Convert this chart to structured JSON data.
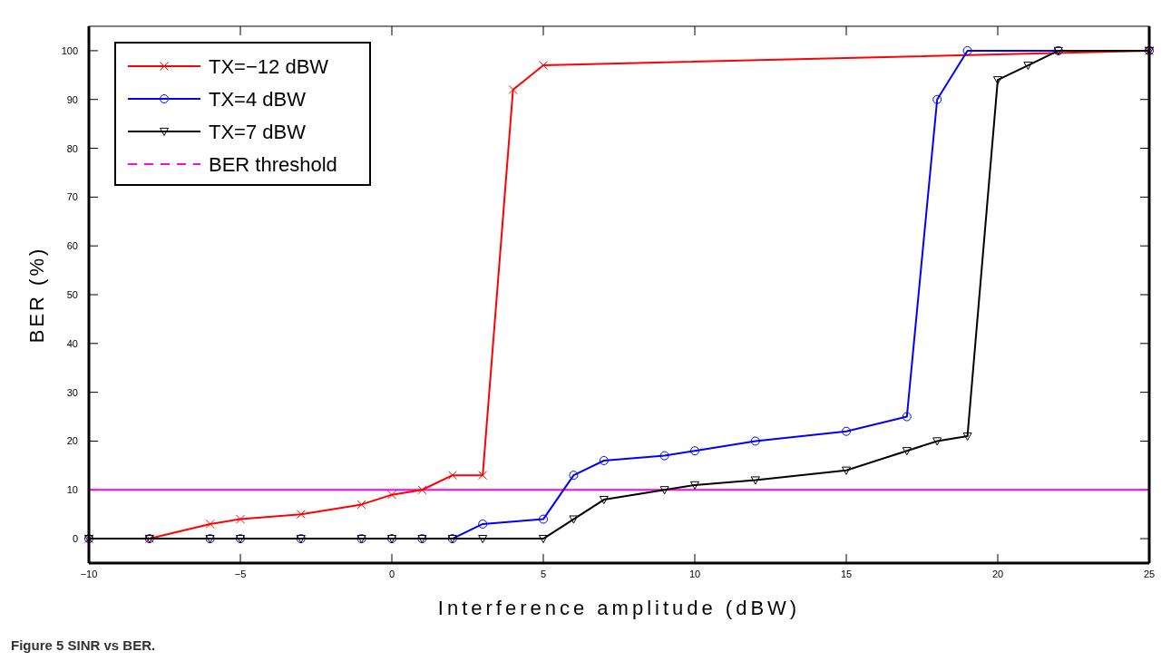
{
  "chart_data": {
    "type": "line",
    "xlabel": "Interference amplitude (dBW)",
    "ylabel": "BER (%)",
    "annotations": [
      "Figure 5 SINR vs BER."
    ],
    "xlim": [
      -10,
      25
    ],
    "xticks": [
      {
        "value": -10,
        "label": "−10"
      },
      {
        "value": -5,
        "label": "−5"
      },
      0,
      5,
      10,
      15,
      20,
      25
    ],
    "ylim": [
      -5,
      105
    ],
    "yticks": [
      0,
      10,
      20,
      30,
      40,
      50,
      60,
      70,
      80,
      90,
      100
    ],
    "legend": "top left",
    "series": [
      {
        "name": "TX=−12 dBW",
        "color": "#ff0000",
        "marker": "cross",
        "x": [
          -10,
          -8,
          -6,
          -5,
          -3,
          -1,
          0,
          1,
          2,
          3,
          4,
          5,
          25
        ],
        "values": [
          0,
          0,
          3,
          4,
          5,
          7,
          9,
          10,
          13,
          13,
          92,
          97,
          100
        ]
      },
      {
        "name": "TX=4 dBW",
        "color": "#0000ff",
        "marker": "circle",
        "x": [
          -10,
          -8,
          -6,
          -5,
          -3,
          -1,
          0,
          1,
          2,
          3,
          5,
          6,
          7,
          9,
          10,
          12,
          15,
          17,
          18,
          19,
          22,
          25
        ],
        "values": [
          0,
          0,
          0,
          0,
          0,
          0,
          0,
          0,
          0,
          3,
          4,
          13,
          16,
          17,
          18,
          20,
          22,
          25,
          90,
          100,
          100,
          100
        ]
      },
      {
        "name": "TX=7 dBW",
        "color": "#000000",
        "marker": "triangle",
        "x": [
          -10,
          -8,
          -6,
          -5,
          -3,
          -1,
          0,
          1,
          2,
          3,
          5,
          6,
          7,
          9,
          10,
          12,
          15,
          17,
          18,
          19,
          20,
          21,
          22,
          25
        ],
        "values": [
          0,
          0,
          0,
          0,
          0,
          0,
          0,
          0,
          0,
          0,
          0,
          4,
          8,
          10,
          11,
          12,
          14,
          18,
          20,
          21,
          94,
          97,
          100,
          100
        ]
      }
    ],
    "ref_lines": [
      {
        "axis": "y",
        "value": 10,
        "label": "BER threshold",
        "color": "#ff00ff"
      }
    ]
  }
}
